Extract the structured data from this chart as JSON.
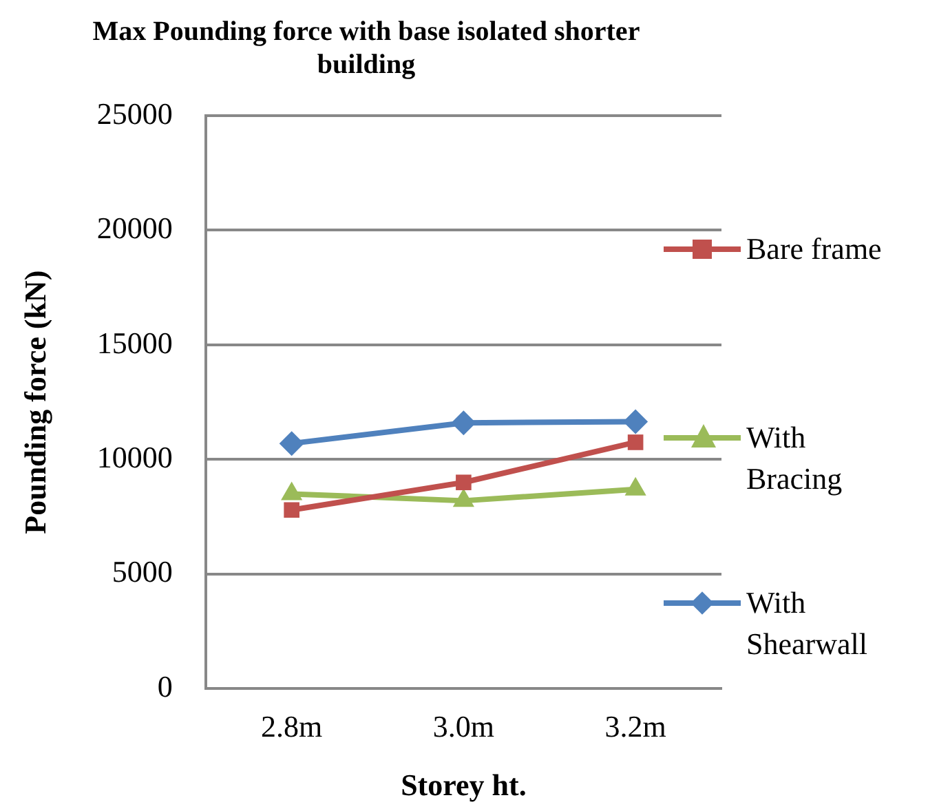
{
  "chart_data": {
    "type": "line",
    "title": "Max Pounding force with base isolated shorter building",
    "xlabel": "Storey ht.",
    "ylabel": "Pounding force (kN)",
    "categories": [
      "2.8m",
      "3.0m",
      "3.2m"
    ],
    "series": [
      {
        "name": "Bare frame",
        "color": "#c0504d",
        "marker": "square",
        "values": [
          7800,
          9000,
          10750
        ]
      },
      {
        "name": "With Bracing",
        "color": "#9bbb59",
        "marker": "triangle",
        "values": [
          8500,
          8200,
          8700
        ]
      },
      {
        "name": "With Shearwall",
        "color": "#4f81bd",
        "marker": "diamond",
        "values": [
          10700,
          11600,
          11650
        ]
      }
    ],
    "ylim": [
      0,
      25000
    ],
    "yticks": [
      0,
      5000,
      10000,
      15000,
      20000,
      25000
    ],
    "grid": "y",
    "legend": "right"
  }
}
